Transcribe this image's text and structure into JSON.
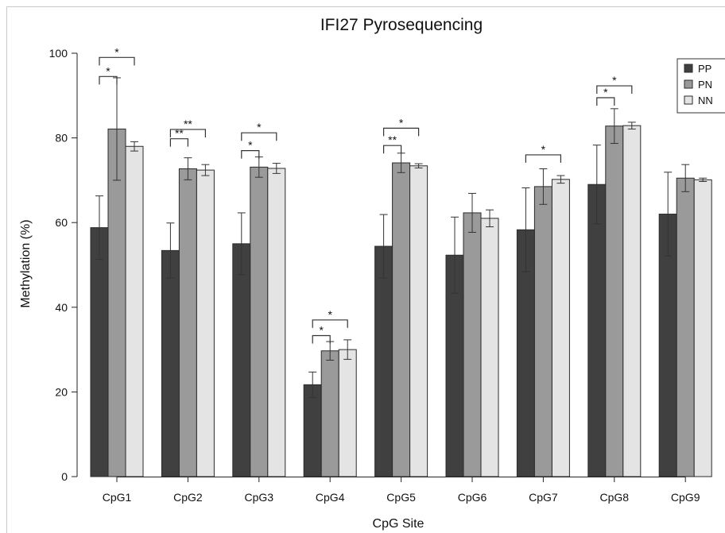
{
  "chart_data": {
    "type": "bar",
    "title": "IFI27 Pyrosequencing",
    "xlabel": "CpG Site",
    "ylabel": "Methylation (%)",
    "ylim": [
      0,
      100
    ],
    "yticks": [
      0,
      20,
      40,
      60,
      80,
      100
    ],
    "grid": false,
    "legend_position": "top-right",
    "categories": [
      "CpG1",
      "CpG2",
      "CpG3",
      "CpG4",
      "CpG5",
      "CpG6",
      "CpG7",
      "CpG8",
      "CpG9"
    ],
    "series": [
      {
        "name": "PP",
        "color": "#404040",
        "values": [
          58.8,
          53.4,
          55.0,
          21.7,
          54.4,
          52.3,
          58.3,
          69.0,
          62.0
        ],
        "errors": [
          7.5,
          6.5,
          7.3,
          3.0,
          7.5,
          9.0,
          9.9,
          9.3,
          9.9
        ]
      },
      {
        "name": "PN",
        "color": "#9a9a9a",
        "values": [
          82.1,
          72.7,
          73.1,
          29.7,
          74.1,
          62.3,
          68.5,
          82.8,
          70.5
        ],
        "errors": [
          12.1,
          2.6,
          2.4,
          2.2,
          2.3,
          4.6,
          4.2,
          4.1,
          3.2
        ]
      },
      {
        "name": "NN",
        "color": "#e4e4e4",
        "values": [
          78.0,
          72.4,
          72.8,
          30.0,
          73.4,
          61.0,
          70.2,
          82.9,
          70.1
        ],
        "errors": [
          1.1,
          1.3,
          1.2,
          2.3,
          0.5,
          2.0,
          0.9,
          0.8,
          0.4
        ]
      }
    ],
    "significance": [
      {
        "category": 0,
        "from": 0,
        "to": 1,
        "y": 94.5,
        "label": "*"
      },
      {
        "category": 0,
        "from": 0,
        "to": 2,
        "y": 99.0,
        "label": "*"
      },
      {
        "category": 1,
        "from": 0,
        "to": 1,
        "y": 79.8,
        "label": "**"
      },
      {
        "category": 1,
        "from": 0,
        "to": 2,
        "y": 82.0,
        "label": "**"
      },
      {
        "category": 2,
        "from": 0,
        "to": 1,
        "y": 77.0,
        "label": "*"
      },
      {
        "category": 2,
        "from": 0,
        "to": 2,
        "y": 81.2,
        "label": "*"
      },
      {
        "category": 3,
        "from": 0,
        "to": 1,
        "y": 33.3,
        "label": "*"
      },
      {
        "category": 3,
        "from": 0,
        "to": 2,
        "y": 37.0,
        "label": "*"
      },
      {
        "category": 4,
        "from": 0,
        "to": 1,
        "y": 78.2,
        "label": "**"
      },
      {
        "category": 4,
        "from": 0,
        "to": 2,
        "y": 82.3,
        "label": "*"
      },
      {
        "category": 6,
        "from": 0,
        "to": 2,
        "y": 76.0,
        "label": "*"
      },
      {
        "category": 7,
        "from": 0,
        "to": 1,
        "y": 89.5,
        "label": "*"
      },
      {
        "category": 7,
        "from": 0,
        "to": 2,
        "y": 92.3,
        "label": "*"
      }
    ]
  }
}
